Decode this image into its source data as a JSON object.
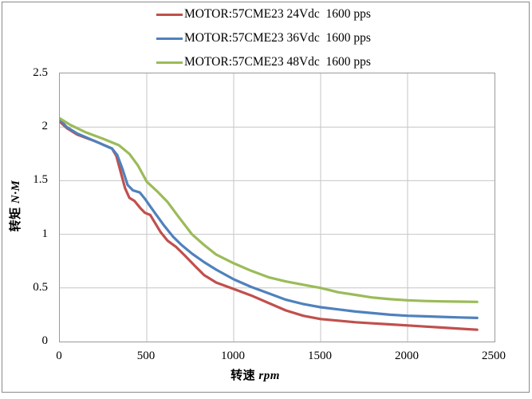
{
  "figure": {
    "background": "#ffffff",
    "outer_border_color": "#8a8a8a",
    "plot_border_color": "#9a9a9a",
    "grid_color": "#c6c6c6"
  },
  "axes": {
    "x_title_cn": "转速",
    "x_title_unit": "rpm",
    "y_title_cn": "转矩",
    "y_title_unit": "N·M"
  },
  "chart_data": {
    "type": "line",
    "title": "",
    "xlabel": "转速 rpm",
    "ylabel": "转矩 N·M",
    "xlim": [
      0,
      2500
    ],
    "ylim": [
      0,
      2.5
    ],
    "x_ticks": [
      0,
      500,
      1000,
      1500,
      2000,
      2500
    ],
    "y_ticks": [
      0,
      0.5,
      1,
      1.5,
      2,
      2.5
    ],
    "grid": true,
    "legend_position": "top-center",
    "series": [
      {
        "name": "MOTOR:57CME23 24Vdc  1600 pps",
        "color": "#C0504D",
        "points": [
          [
            0,
            2.05
          ],
          [
            40,
            1.99
          ],
          [
            100,
            1.93
          ],
          [
            200,
            1.87
          ],
          [
            300,
            1.8
          ],
          [
            325,
            1.73
          ],
          [
            350,
            1.58
          ],
          [
            375,
            1.43
          ],
          [
            400,
            1.34
          ],
          [
            430,
            1.31
          ],
          [
            465,
            1.24
          ],
          [
            490,
            1.2
          ],
          [
            520,
            1.18
          ],
          [
            550,
            1.1
          ],
          [
            580,
            1.02
          ],
          [
            620,
            0.94
          ],
          [
            670,
            0.88
          ],
          [
            720,
            0.8
          ],
          [
            780,
            0.7
          ],
          [
            830,
            0.62
          ],
          [
            900,
            0.55
          ],
          [
            1000,
            0.49
          ],
          [
            1100,
            0.43
          ],
          [
            1200,
            0.36
          ],
          [
            1300,
            0.29
          ],
          [
            1400,
            0.24
          ],
          [
            1500,
            0.21
          ],
          [
            1600,
            0.195
          ],
          [
            1700,
            0.18
          ],
          [
            1800,
            0.17
          ],
          [
            1900,
            0.16
          ],
          [
            2000,
            0.15
          ],
          [
            2100,
            0.14
          ],
          [
            2200,
            0.13
          ],
          [
            2300,
            0.12
          ],
          [
            2400,
            0.11
          ]
        ]
      },
      {
        "name": "MOTOR:57CME23 36Vdc  1600 pps",
        "color": "#4F81BD",
        "points": [
          [
            0,
            2.07
          ],
          [
            40,
            2.0
          ],
          [
            100,
            1.94
          ],
          [
            200,
            1.87
          ],
          [
            300,
            1.8
          ],
          [
            330,
            1.74
          ],
          [
            360,
            1.61
          ],
          [
            390,
            1.46
          ],
          [
            420,
            1.41
          ],
          [
            460,
            1.39
          ],
          [
            490,
            1.33
          ],
          [
            520,
            1.26
          ],
          [
            560,
            1.17
          ],
          [
            600,
            1.08
          ],
          [
            650,
            0.98
          ],
          [
            700,
            0.9
          ],
          [
            760,
            0.82
          ],
          [
            830,
            0.74
          ],
          [
            900,
            0.67
          ],
          [
            1000,
            0.58
          ],
          [
            1100,
            0.51
          ],
          [
            1200,
            0.45
          ],
          [
            1300,
            0.39
          ],
          [
            1400,
            0.35
          ],
          [
            1500,
            0.32
          ],
          [
            1600,
            0.3
          ],
          [
            1700,
            0.28
          ],
          [
            1800,
            0.265
          ],
          [
            1900,
            0.25
          ],
          [
            2000,
            0.24
          ],
          [
            2100,
            0.235
          ],
          [
            2200,
            0.23
          ],
          [
            2300,
            0.225
          ],
          [
            2400,
            0.22
          ]
        ]
      },
      {
        "name": "MOTOR:57CME23 48Vdc  1600 pps",
        "color": "#9BBB59",
        "points": [
          [
            0,
            2.08
          ],
          [
            60,
            2.02
          ],
          [
            150,
            1.95
          ],
          [
            250,
            1.89
          ],
          [
            340,
            1.83
          ],
          [
            400,
            1.75
          ],
          [
            450,
            1.64
          ],
          [
            500,
            1.49
          ],
          [
            560,
            1.4
          ],
          [
            620,
            1.3
          ],
          [
            680,
            1.17
          ],
          [
            760,
            1.0
          ],
          [
            830,
            0.9
          ],
          [
            900,
            0.81
          ],
          [
            1000,
            0.73
          ],
          [
            1100,
            0.66
          ],
          [
            1200,
            0.6
          ],
          [
            1300,
            0.56
          ],
          [
            1400,
            0.53
          ],
          [
            1500,
            0.5
          ],
          [
            1600,
            0.46
          ],
          [
            1700,
            0.435
          ],
          [
            1800,
            0.41
          ],
          [
            1900,
            0.395
          ],
          [
            2000,
            0.385
          ],
          [
            2100,
            0.378
          ],
          [
            2200,
            0.374
          ],
          [
            2300,
            0.372
          ],
          [
            2400,
            0.37
          ]
        ]
      }
    ]
  }
}
